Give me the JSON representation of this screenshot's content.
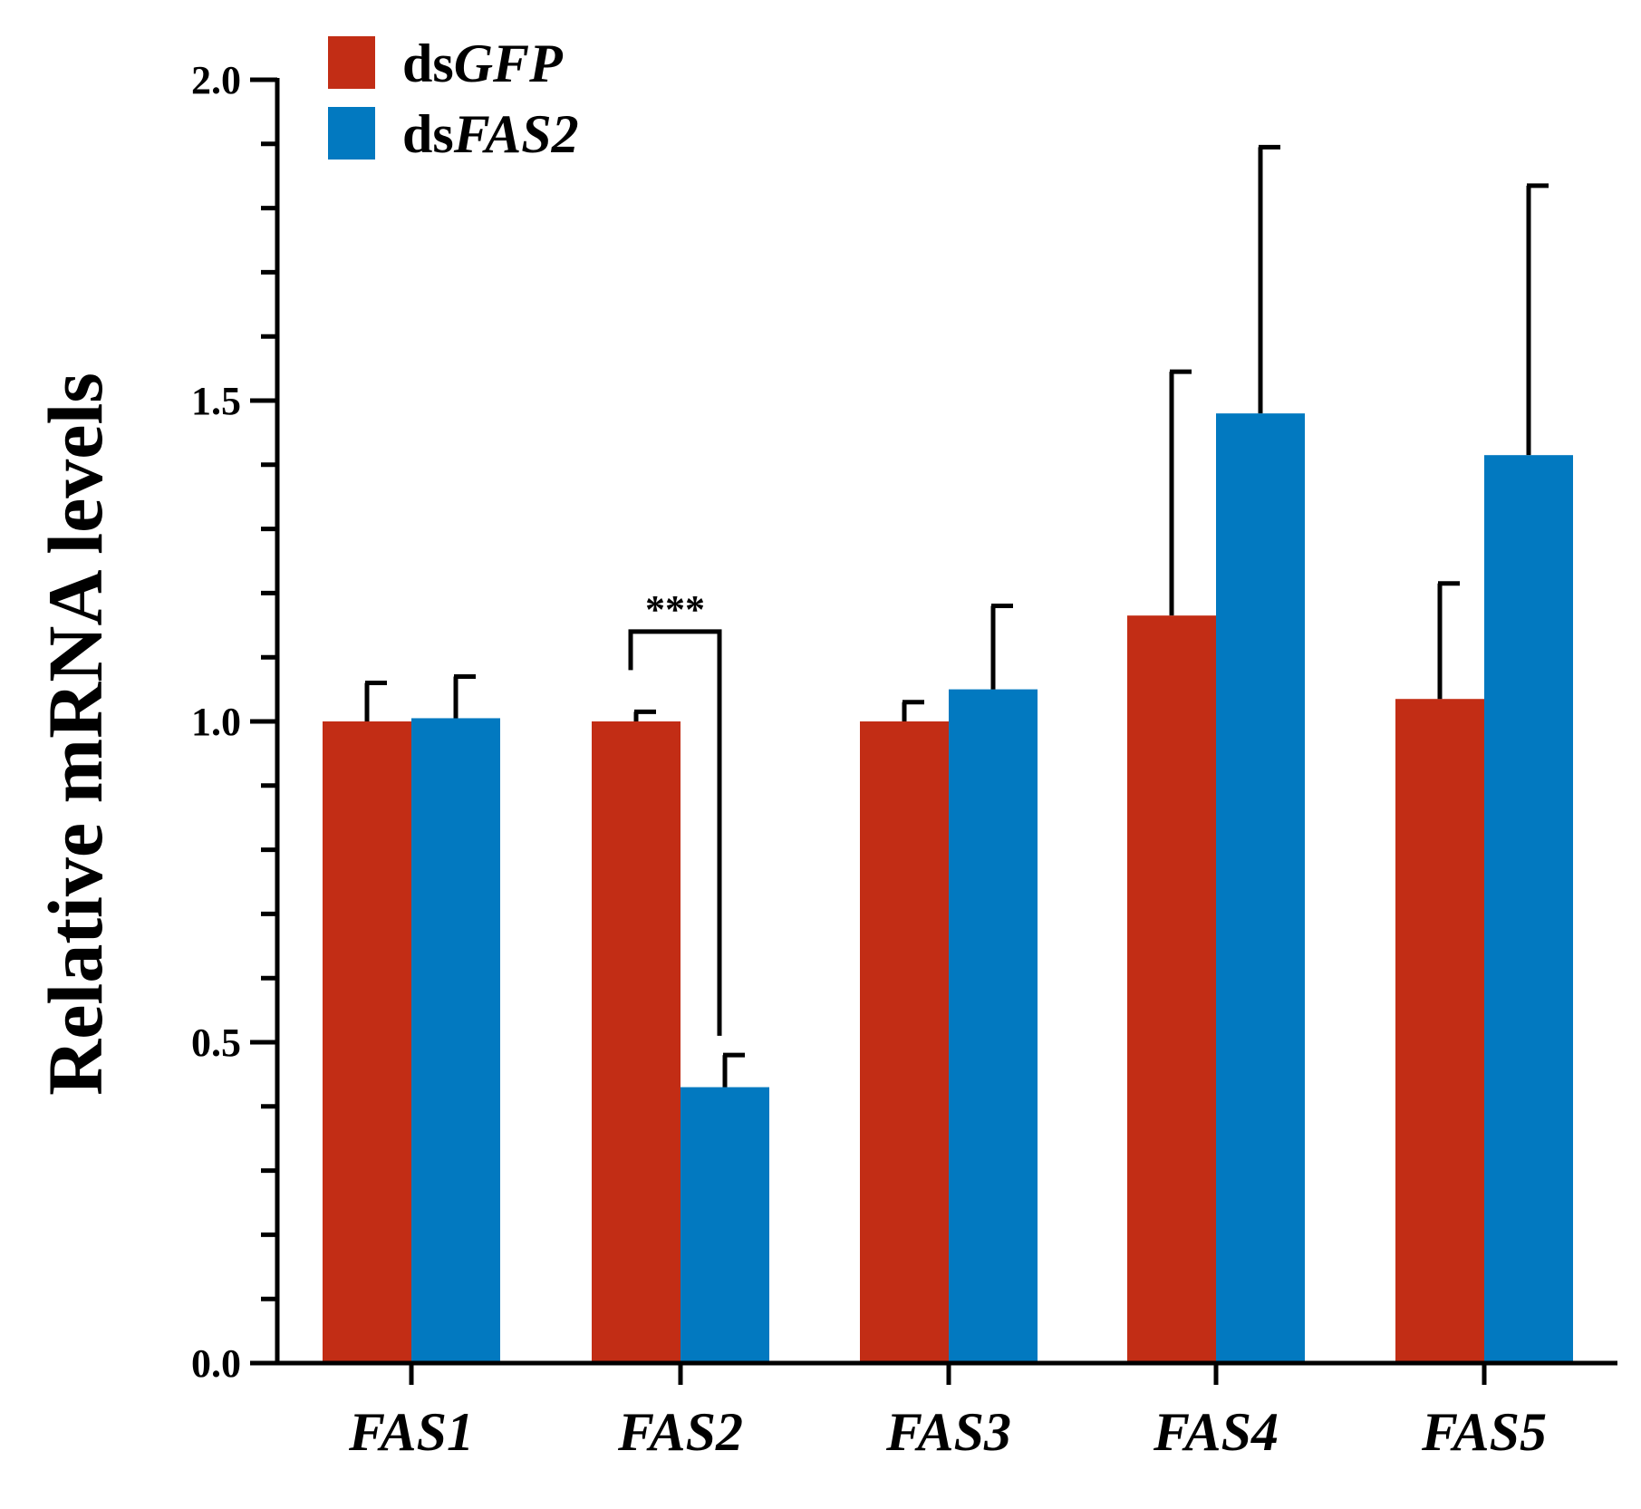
{
  "chart_data": {
    "type": "bar",
    "title": "",
    "xlabel": "",
    "ylabel": "Relative mRNA levels",
    "ylim": [
      0,
      2.0
    ],
    "yticks": [
      0.0,
      0.5,
      1.0,
      1.5,
      2.0
    ],
    "ytick_labels": [
      "0.0",
      "0.5",
      "1.0",
      "1.5",
      "2.0"
    ],
    "minor_ytick_step": 0.1,
    "categories": [
      "FAS1",
      "FAS2",
      "FAS3",
      "FAS4",
      "FAS5"
    ],
    "series": [
      {
        "name": "dsGFP",
        "legend_prefix": "ds",
        "legend_gene": "GFP",
        "color": "#c22d15",
        "values": [
          1.0,
          1.0,
          1.0,
          1.165,
          1.035
        ],
        "errors": [
          0.06,
          0.015,
          0.03,
          0.38,
          0.18
        ]
      },
      {
        "name": "dsFAS2",
        "legend_prefix": "ds",
        "legend_gene": "FAS2",
        "color": "#0279c0",
        "values": [
          1.005,
          0.43,
          1.05,
          1.48,
          1.415
        ],
        "errors": [
          0.065,
          0.05,
          0.13,
          0.415,
          0.42
        ]
      }
    ],
    "legend_position": "top-left",
    "grid": false,
    "annotations": [
      {
        "text": "***",
        "category": "FAS2",
        "bracket_top": 1.14,
        "left_end": 1.08,
        "right_end": 0.51
      }
    ]
  }
}
